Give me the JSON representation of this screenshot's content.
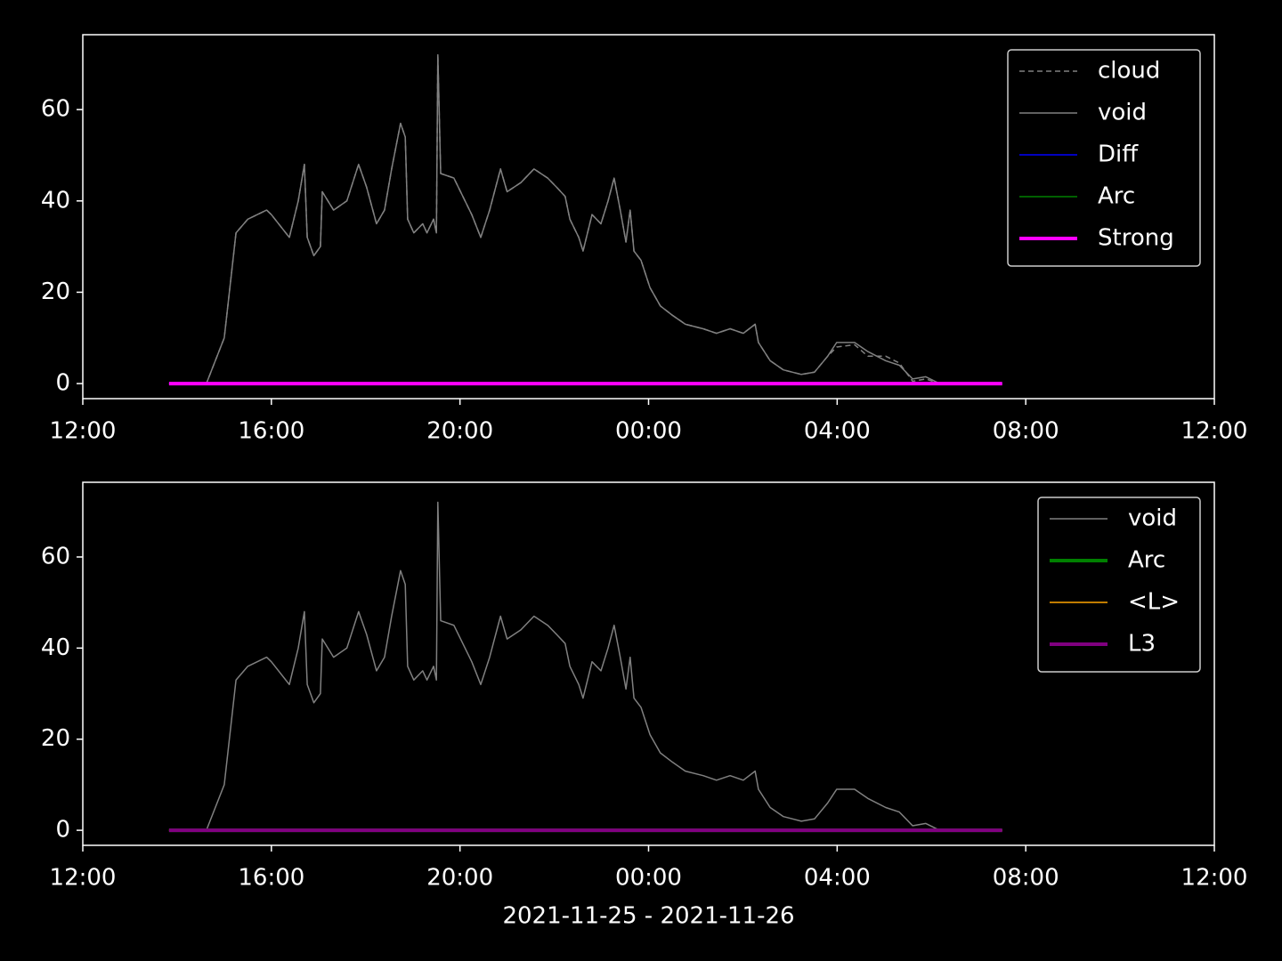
{
  "chart_data": [
    {
      "type": "line",
      "xlim": [
        0,
        24
      ],
      "xticks": [
        {
          "value": 0,
          "label": "12:00"
        },
        {
          "value": 4,
          "label": "16:00"
        },
        {
          "value": 8,
          "label": "20:00"
        },
        {
          "value": 12,
          "label": "00:00"
        },
        {
          "value": 16,
          "label": "04:00"
        },
        {
          "value": 20,
          "label": "08:00"
        },
        {
          "value": 24,
          "label": "12:00"
        }
      ],
      "ylim": [
        -3.3,
        76.4
      ],
      "yticks": [
        0,
        20,
        40,
        60
      ],
      "legend": "upper right",
      "series": [
        {
          "name": "cloud",
          "color": "#808080",
          "width": 1.5,
          "dash": true,
          "x": [
            1.83,
            2.62,
            3.0,
            3.25,
            3.5,
            3.9,
            4.0,
            4.38,
            4.57,
            4.7,
            4.76,
            4.9,
            5.04,
            5.08,
            5.32,
            5.6,
            5.85,
            6.02,
            6.23,
            6.4,
            6.55,
            6.74,
            6.84,
            6.89,
            7.02,
            7.21,
            7.3,
            7.44,
            7.5,
            7.53,
            7.59,
            7.87,
            8.25,
            8.44,
            8.63,
            8.86,
            9.0,
            9.29,
            9.57,
            9.86,
            10.05,
            10.23,
            10.33,
            10.52,
            10.61,
            10.8,
            10.99,
            11.14,
            11.27,
            11.4,
            11.52,
            11.61,
            11.69,
            11.84,
            12.03,
            12.25,
            12.5,
            12.78,
            13.16,
            13.44,
            13.73,
            14.01,
            14.26,
            14.33,
            14.58,
            14.86,
            15.24,
            15.52,
            15.8,
            15.99,
            16.37,
            16.65,
            17.03,
            17.32,
            17.6,
            17.88,
            18.17,
            19.5
          ],
          "values": [
            0,
            0,
            10,
            33,
            36,
            38,
            37,
            32,
            40,
            48,
            32,
            28,
            30,
            42,
            38,
            40,
            48,
            43,
            35,
            38,
            47,
            57,
            54,
            36,
            33,
            35,
            33,
            36,
            33,
            72,
            46,
            45,
            37,
            32,
            38,
            47,
            42,
            44,
            47,
            45,
            43,
            41,
            36,
            32,
            29,
            37,
            35,
            40,
            45,
            38,
            31,
            38,
            29,
            27,
            21,
            17,
            15,
            13,
            12,
            11,
            12,
            11,
            13,
            9,
            5,
            3,
            2,
            2.5,
            6,
            8,
            8.5,
            6,
            6,
            4.5,
            0.5,
            1,
            0,
            0
          ]
        },
        {
          "name": "void",
          "color": "#808080",
          "width": 1.5,
          "dash": false,
          "x": [
            1.83,
            2.62,
            3.0,
            3.25,
            3.5,
            3.9,
            4.0,
            4.38,
            4.57,
            4.7,
            4.76,
            4.9,
            5.04,
            5.08,
            5.32,
            5.6,
            5.85,
            6.02,
            6.23,
            6.4,
            6.55,
            6.74,
            6.84,
            6.89,
            7.02,
            7.21,
            7.3,
            7.44,
            7.5,
            7.53,
            7.59,
            7.87,
            8.25,
            8.44,
            8.63,
            8.86,
            9.0,
            9.29,
            9.57,
            9.86,
            10.05,
            10.23,
            10.33,
            10.52,
            10.61,
            10.8,
            10.99,
            11.14,
            11.27,
            11.4,
            11.52,
            11.61,
            11.69,
            11.84,
            12.03,
            12.25,
            12.5,
            12.78,
            13.16,
            13.44,
            13.73,
            14.01,
            14.26,
            14.33,
            14.58,
            14.86,
            15.24,
            15.52,
            15.8,
            15.99,
            16.37,
            16.65,
            17.03,
            17.32,
            17.6,
            17.88,
            18.17,
            19.5
          ],
          "values": [
            0,
            0,
            10,
            33,
            36,
            38,
            37,
            32,
            40,
            48,
            32,
            28,
            30,
            42,
            38,
            40,
            48,
            43,
            35,
            38,
            47,
            57,
            54,
            36,
            33,
            35,
            33,
            36,
            33,
            72,
            46,
            45,
            37,
            32,
            38,
            47,
            42,
            44,
            47,
            45,
            43,
            41,
            36,
            32,
            29,
            37,
            35,
            40,
            45,
            38,
            31,
            38,
            29,
            27,
            21,
            17,
            15,
            13,
            12,
            11,
            12,
            11,
            13,
            9,
            5,
            3,
            2,
            2.5,
            6,
            9,
            9,
            7,
            5,
            4,
            1,
            1.5,
            0,
            0
          ]
        },
        {
          "name": "Diff",
          "color": "#0000ff",
          "width": 1.5,
          "dash": false,
          "x": [
            1.83,
            19.5
          ],
          "values": [
            0,
            0
          ]
        },
        {
          "name": "Arc",
          "color": "#008000",
          "width": 1.5,
          "dash": false,
          "x": [
            1.83,
            19.5
          ],
          "values": [
            0,
            0
          ]
        },
        {
          "name": "Strong",
          "color": "#ff00ff",
          "width": 4,
          "dash": false,
          "x": [
            1.83,
            19.5
          ],
          "values": [
            0,
            0
          ]
        }
      ]
    },
    {
      "type": "line",
      "xlim": [
        0,
        24
      ],
      "xticks": [
        {
          "value": 0,
          "label": "12:00"
        },
        {
          "value": 4,
          "label": "16:00"
        },
        {
          "value": 8,
          "label": "20:00"
        },
        {
          "value": 12,
          "label": "00:00"
        },
        {
          "value": 16,
          "label": "04:00"
        },
        {
          "value": 20,
          "label": "08:00"
        },
        {
          "value": 24,
          "label": "12:00"
        }
      ],
      "ylim": [
        -3.3,
        76.4
      ],
      "yticks": [
        0,
        20,
        40,
        60
      ],
      "legend": "upper right",
      "x_label": "2021-11-25 - 2021-11-26",
      "series": [
        {
          "name": "void",
          "color": "#808080",
          "width": 1.5,
          "dash": false,
          "x": [
            1.83,
            2.62,
            3.0,
            3.25,
            3.5,
            3.9,
            4.0,
            4.38,
            4.57,
            4.7,
            4.76,
            4.9,
            5.04,
            5.08,
            5.32,
            5.6,
            5.85,
            6.02,
            6.23,
            6.4,
            6.55,
            6.74,
            6.84,
            6.89,
            7.02,
            7.21,
            7.3,
            7.44,
            7.5,
            7.53,
            7.59,
            7.87,
            8.25,
            8.44,
            8.63,
            8.86,
            9.0,
            9.29,
            9.57,
            9.86,
            10.05,
            10.23,
            10.33,
            10.52,
            10.61,
            10.8,
            10.99,
            11.14,
            11.27,
            11.4,
            11.52,
            11.61,
            11.69,
            11.84,
            12.03,
            12.25,
            12.5,
            12.78,
            13.16,
            13.44,
            13.73,
            14.01,
            14.26,
            14.33,
            14.58,
            14.86,
            15.24,
            15.52,
            15.8,
            15.99,
            16.37,
            16.65,
            17.03,
            17.32,
            17.6,
            17.88,
            18.17,
            19.5
          ],
          "values": [
            0,
            0,
            10,
            33,
            36,
            38,
            37,
            32,
            40,
            48,
            32,
            28,
            30,
            42,
            38,
            40,
            48,
            43,
            35,
            38,
            47,
            57,
            54,
            36,
            33,
            35,
            33,
            36,
            33,
            72,
            46,
            45,
            37,
            32,
            38,
            47,
            42,
            44,
            47,
            45,
            43,
            41,
            36,
            32,
            29,
            37,
            35,
            40,
            45,
            38,
            31,
            38,
            29,
            27,
            21,
            17,
            15,
            13,
            12,
            11,
            12,
            11,
            13,
            9,
            5,
            3,
            2,
            2.5,
            6,
            9,
            9,
            7,
            5,
            4,
            1,
            1.5,
            0,
            0
          ]
        },
        {
          "name": "Arc",
          "color": "#008000",
          "width": 4,
          "dash": false,
          "x": [
            1.83,
            19.5
          ],
          "values": [
            0,
            0
          ]
        },
        {
          "name": "<L>",
          "color": "#ffa500",
          "width": 1.5,
          "dash": false,
          "x": [
            1.83,
            19.5
          ],
          "values": [
            0,
            0
          ]
        },
        {
          "name": "L3",
          "color": "#800080",
          "width": 4,
          "dash": false,
          "x": [
            1.83,
            19.5
          ],
          "values": [
            0,
            0
          ]
        }
      ]
    }
  ]
}
